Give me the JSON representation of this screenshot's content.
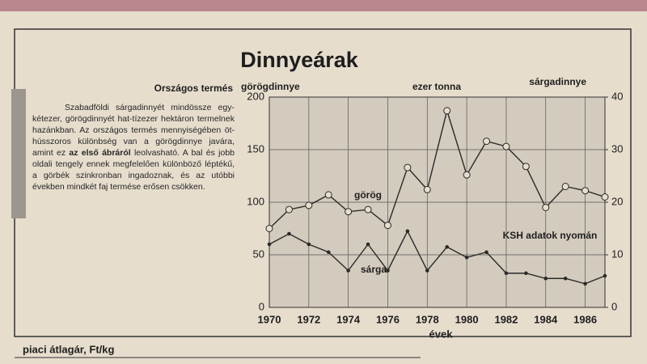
{
  "header": {
    "title": "Dinnyeárak"
  },
  "article": {
    "heading": "Országos termés",
    "text_before": "Szabadföldi sárgadinnyét mindössze egy-kétezer, görögdinnyét hat-tízezer hektáron termelnek hazánkban. Az országos termés mennyiségében öt-hússzoros különbség van a görögdinnye javára, amint ez ",
    "text_bold": "az első ábráról",
    "text_after": " leolvasható. A bal és jobb oldali tengely ennek megfelelően különböző léptékű, a görbék szinkronban ingadoznak, és az utóbbi években mindkét faj termése erősen csökken."
  },
  "footer": {
    "caption": "piaci átlagár, Ft/kg"
  },
  "chart_data": {
    "type": "line",
    "y_label": "görögdinnye",
    "y2_label": "sárgadinnye",
    "unit_label": "ezer tonna",
    "x_label": "évek",
    "source": "KSH adatok nyomán",
    "x": [
      1970,
      1971,
      1972,
      1973,
      1974,
      1975,
      1976,
      1977,
      1978,
      1979,
      1980,
      1981,
      1982,
      1983,
      1984,
      1985,
      1986,
      1987
    ],
    "xlim": [
      1970,
      1987
    ],
    "xticks": [
      1970,
      1972,
      1974,
      1976,
      1978,
      1980,
      1982,
      1984,
      1986
    ],
    "ylim": [
      0,
      200
    ],
    "yticks": [
      0,
      50,
      100,
      150,
      200
    ],
    "y2lim": [
      0,
      40
    ],
    "y2ticks": [
      0,
      10,
      20,
      30,
      40
    ],
    "grid": true,
    "series": [
      {
        "name": "görög",
        "color": "#2a2a2a",
        "values": [
          75,
          93,
          97,
          107,
          91,
          93,
          78,
          133,
          112,
          187,
          126,
          158,
          153,
          134,
          95,
          115,
          111,
          105
        ]
      },
      {
        "name": "sárga",
        "color": "#2a2a2a",
        "axis": "y2",
        "values": [
          12,
          14,
          12,
          10.5,
          7,
          12,
          7,
          14.5,
          7,
          11.5,
          9.5,
          10.5,
          6.5,
          6.5,
          5.5,
          5.5,
          4.5,
          6
        ]
      }
    ]
  }
}
